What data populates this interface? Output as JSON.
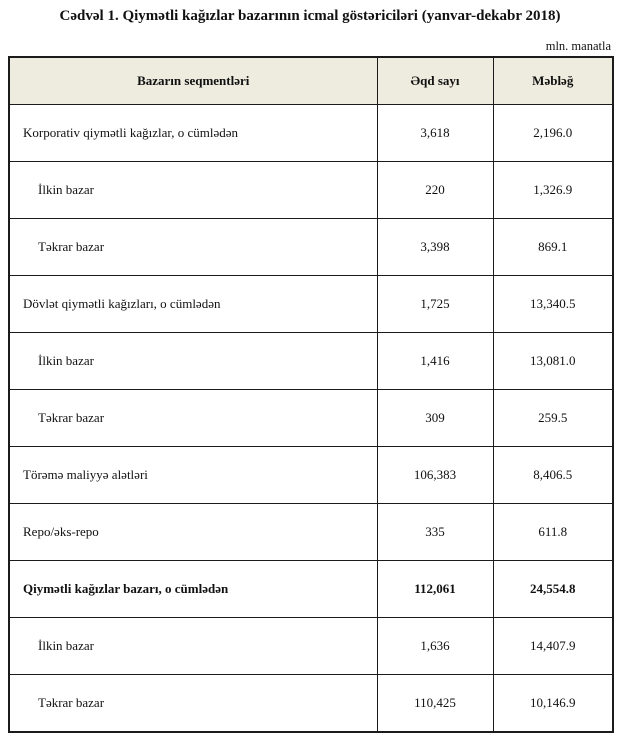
{
  "title": "Cədvəl 1. Qiymətli kağızlar bazarının icmal göstəriciləri (yanvar-dekabr 2018)",
  "unit_label": "mln. manatla",
  "colors": {
    "header_bg": "#edecdf",
    "border": "#1b1b1b",
    "text": "#111111",
    "page_bg": "#ffffff"
  },
  "table": {
    "headers": [
      "Bazarın seqmentləri",
      "Əqd sayı",
      "Məbləğ"
    ],
    "rows": [
      {
        "label": "Korporativ qiymətli kağızlar, o cümlədən",
        "deals": "3,618",
        "amount": "2,196.0",
        "level": "main",
        "total": false
      },
      {
        "label": "İlkin bazar",
        "deals": "220",
        "amount": "1,326.9",
        "level": "sub",
        "total": false
      },
      {
        "label": "Təkrar bazar",
        "deals": "3,398",
        "amount": "869.1",
        "level": "sub",
        "total": false
      },
      {
        "label": "Dövlət qiymətli kağızları, o cümlədən",
        "deals": "1,725",
        "amount": "13,340.5",
        "level": "main",
        "total": false
      },
      {
        "label": "İlkin bazar",
        "deals": "1,416",
        "amount": "13,081.0",
        "level": "sub",
        "total": false
      },
      {
        "label": "Təkrar bazar",
        "deals": "309",
        "amount": "259.5",
        "level": "sub",
        "total": false
      },
      {
        "label": "Törəmə maliyyə alətləri",
        "deals": "106,383",
        "amount": "8,406.5",
        "level": "main",
        "total": false
      },
      {
        "label": "Repo/əks-repo",
        "deals": "335",
        "amount": "611.8",
        "level": "main",
        "total": false
      },
      {
        "label": "Qiymətli kağızlar bazarı, o cümlədən",
        "deals": "112,061",
        "amount": "24,554.8",
        "level": "main",
        "total": true
      },
      {
        "label": "İlkin bazar",
        "deals": "1,636",
        "amount": "14,407.9",
        "level": "sub",
        "total": false
      },
      {
        "label": "Təkrar bazar",
        "deals": "110,425",
        "amount": "10,146.9",
        "level": "sub",
        "total": false
      }
    ]
  }
}
